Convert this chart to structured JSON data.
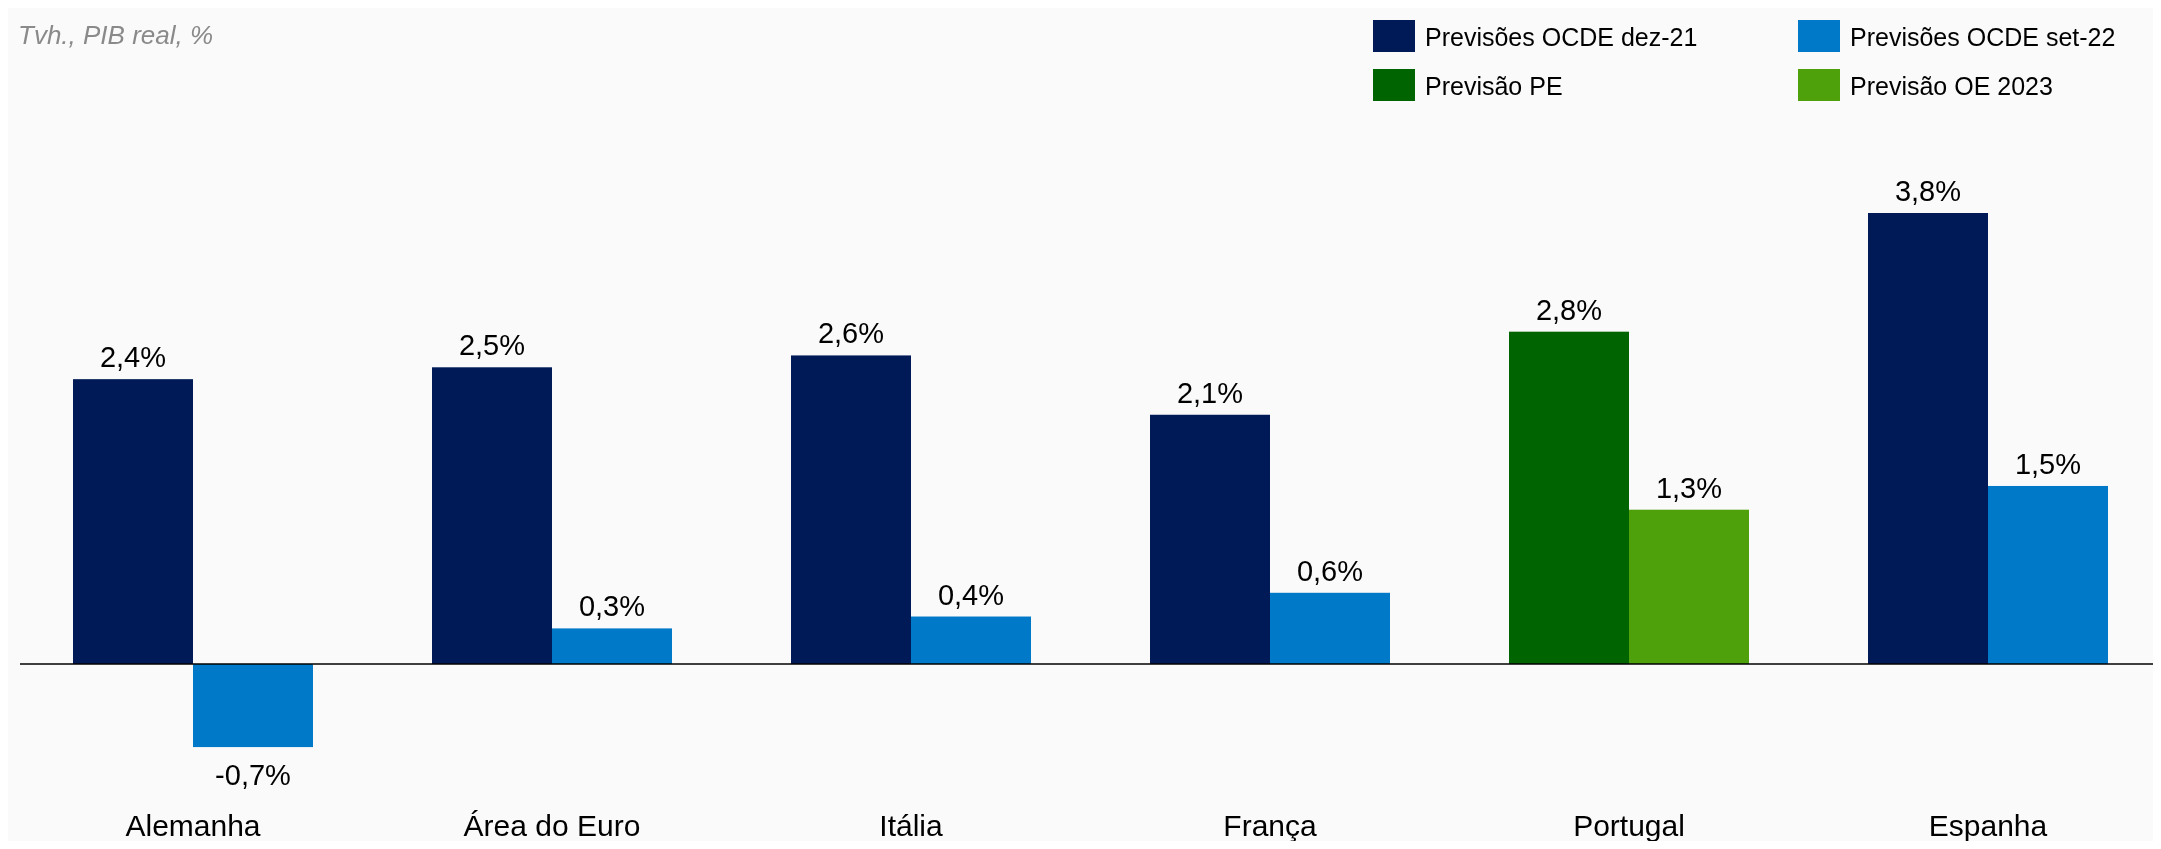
{
  "chart_data": {
    "type": "bar",
    "title": "Tvh., PIB real, %",
    "categories": [
      "Alemanha",
      "Área do Euro",
      "Itália",
      "França",
      "Portugal",
      "Espanha"
    ],
    "series": [
      {
        "name": "Previsões OCDE dez-21",
        "color": "#001a57",
        "values": [
          2.4,
          2.5,
          2.6,
          2.1,
          null,
          3.8
        ],
        "value_labels": [
          "2,4%",
          "2,5%",
          "2,6%",
          "2,1%",
          null,
          "3,8%"
        ]
      },
      {
        "name": "Previsões OCDE set-22",
        "color": "#0079c8",
        "values": [
          -0.7,
          0.3,
          0.4,
          0.6,
          null,
          1.5
        ],
        "value_labels": [
          "-0,7%",
          "0,3%",
          "0,4%",
          "0,6%",
          null,
          "1,5%"
        ]
      },
      {
        "name": "Previsão PE",
        "color": "#006400",
        "values": [
          null,
          null,
          null,
          null,
          2.8,
          null
        ],
        "value_labels": [
          null,
          null,
          null,
          null,
          "2,8%",
          null
        ]
      },
      {
        "name": "Previsão OE 2023",
        "color": "#4ea10a",
        "values": [
          null,
          null,
          null,
          null,
          1.3,
          null
        ],
        "value_labels": [
          null,
          null,
          null,
          null,
          "1,3%",
          null
        ]
      }
    ],
    "legend": "top right"
  }
}
